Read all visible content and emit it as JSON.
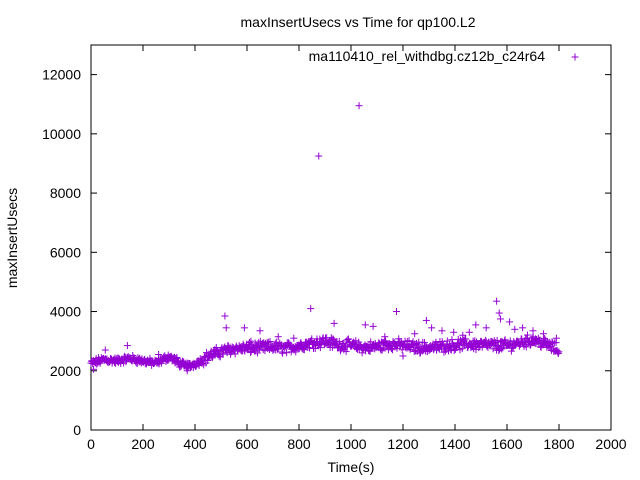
{
  "chart_data": {
    "type": "scatter",
    "title": "maxInsertUsecs vs Time for qp100.L2",
    "xlabel": "Time(s)",
    "ylabel": "maxInsertUsecs",
    "xlim": [
      0,
      2000
    ],
    "ylim": [
      0,
      13000
    ],
    "xticks": [
      0,
      200,
      400,
      600,
      800,
      1000,
      1200,
      1400,
      1600,
      1800,
      2000
    ],
    "yticks": [
      0,
      2000,
      4000,
      6000,
      8000,
      10000,
      12000
    ],
    "grid": false,
    "legend_position": "top-right",
    "series": [
      {
        "name": "ma110410_rel_withdbg.cz12b_c24r64",
        "marker": "+",
        "color": "#9400d3",
        "trend": [
          [
            0,
            2250
          ],
          [
            50,
            2380
          ],
          [
            100,
            2330
          ],
          [
            150,
            2420
          ],
          [
            200,
            2330
          ],
          [
            250,
            2260
          ],
          [
            300,
            2480
          ],
          [
            350,
            2200
          ],
          [
            380,
            2160
          ],
          [
            420,
            2330
          ],
          [
            460,
            2520
          ],
          [
            500,
            2650
          ],
          [
            550,
            2750
          ],
          [
            600,
            2760
          ],
          [
            650,
            2780
          ],
          [
            700,
            2810
          ],
          [
            750,
            2760
          ],
          [
            800,
            2840
          ],
          [
            850,
            2950
          ],
          [
            900,
            3000
          ],
          [
            950,
            2880
          ],
          [
            1000,
            2860
          ],
          [
            1050,
            2780
          ],
          [
            1100,
            2820
          ],
          [
            1150,
            2900
          ],
          [
            1200,
            2860
          ],
          [
            1250,
            2800
          ],
          [
            1300,
            2780
          ],
          [
            1350,
            2820
          ],
          [
            1400,
            2880
          ],
          [
            1450,
            2900
          ],
          [
            1500,
            2880
          ],
          [
            1550,
            2860
          ],
          [
            1600,
            2850
          ],
          [
            1650,
            2950
          ],
          [
            1700,
            3050
          ],
          [
            1750,
            2900
          ],
          [
            1800,
            2700
          ]
        ],
        "outliers": [
          [
            876,
            9250
          ],
          [
            1031,
            10950
          ],
          [
            515,
            3850
          ],
          [
            520,
            3450
          ],
          [
            590,
            3450
          ],
          [
            650,
            3350
          ],
          [
            845,
            4100
          ],
          [
            1055,
            3550
          ],
          [
            1085,
            3500
          ],
          [
            1175,
            4000
          ],
          [
            1245,
            3250
          ],
          [
            1290,
            3700
          ],
          [
            1310,
            3450
          ],
          [
            1350,
            3350
          ],
          [
            1395,
            3300
          ],
          [
            1455,
            3300
          ],
          [
            1480,
            3550
          ],
          [
            1520,
            3450
          ],
          [
            1560,
            4350
          ],
          [
            1570,
            3950
          ],
          [
            1575,
            3750
          ],
          [
            1610,
            3650
          ],
          [
            1630,
            3400
          ],
          [
            1700,
            3350
          ],
          [
            1740,
            3250
          ],
          [
            55,
            2700
          ],
          [
            140,
            2850
          ],
          [
            260,
            2550
          ],
          [
            330,
            2450
          ],
          [
            615,
            3000
          ],
          [
            720,
            3150
          ],
          [
            780,
            3100
          ],
          [
            935,
            3600
          ],
          [
            1130,
            3150
          ],
          [
            1430,
            3200
          ],
          [
            1660,
            3450
          ],
          [
            1790,
            3100
          ],
          [
            10,
            2050
          ],
          [
            370,
            2000
          ],
          [
            1200,
            2500
          ]
        ]
      }
    ]
  }
}
